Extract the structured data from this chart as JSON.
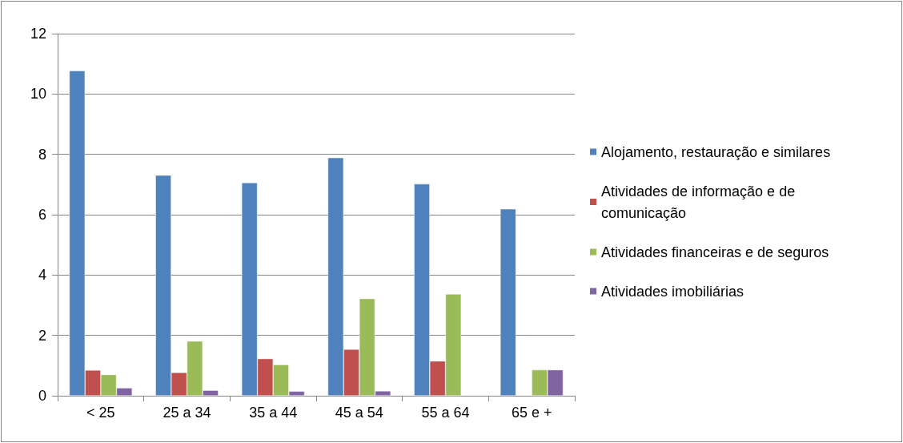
{
  "chart_data": {
    "type": "bar",
    "categories": [
      "< 25",
      "25 a 34",
      "35 a 44",
      "45 a 54",
      "55 a 64",
      "65 e +"
    ],
    "series": [
      {
        "name": "Alojamento, restauração e similares",
        "color": "#4f81bd",
        "values": [
          10.77,
          7.31,
          7.06,
          7.89,
          7.02,
          6.19
        ]
      },
      {
        "name": "Atividades de informação e de comunicação",
        "color": "#c0504d",
        "values": [
          0.85,
          0.77,
          1.23,
          1.54,
          1.15,
          null
        ]
      },
      {
        "name": "Atividades financeiras e de seguros",
        "color": "#9bbb59",
        "values": [
          0.7,
          1.81,
          1.03,
          3.22,
          3.37,
          0.86
        ]
      },
      {
        "name": "Atividades imobiliárias",
        "color": "#8064a2",
        "values": [
          0.26,
          0.18,
          0.15,
          0.16,
          null,
          0.86
        ]
      }
    ],
    "ylim": [
      0,
      12
    ],
    "yticks": [
      0,
      2,
      4,
      6,
      8,
      10,
      12
    ],
    "grid": "y",
    "legend": "right"
  }
}
